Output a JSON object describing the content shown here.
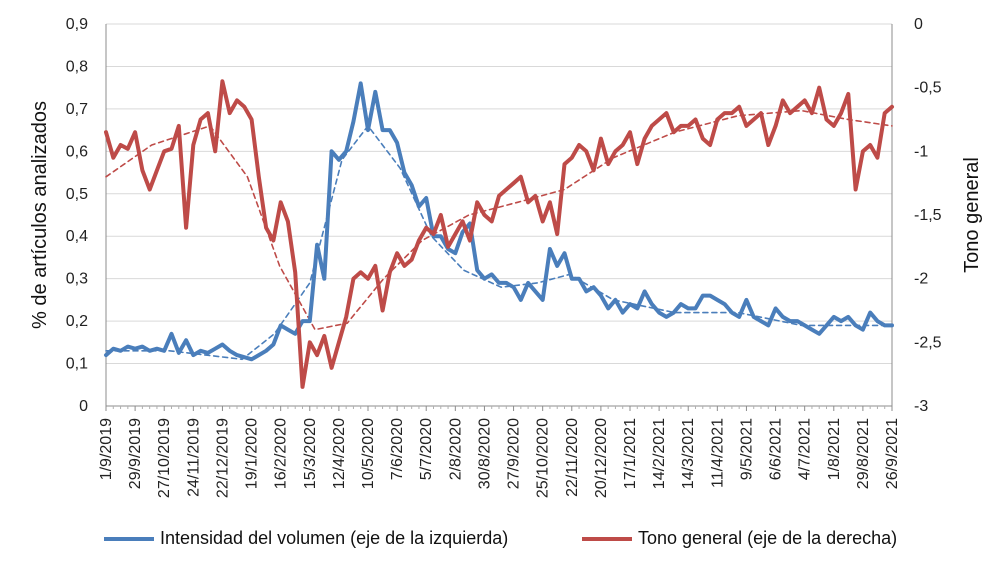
{
  "chart_data": {
    "type": "line",
    "ylabel_left": "% de artículos analizados",
    "ylabel_right": "Tono general",
    "ylim_left": [
      0,
      0.9
    ],
    "ylim_right": [
      -3,
      0
    ],
    "yticks_left": [
      "0",
      "0,1",
      "0,2",
      "0,3",
      "0,4",
      "0,5",
      "0,6",
      "0,7",
      "0,8",
      "0,9"
    ],
    "yticks_right": [
      "-3",
      "-2,5",
      "-2",
      "-1,5",
      "-1",
      "-0,5",
      "0"
    ],
    "x_start": "2019-09-01",
    "x_end": "2021-09-26",
    "xtick_labels": [
      "1/9/2019",
      "29/9/2019",
      "27/10/2019",
      "24/11/2019",
      "22/12/2019",
      "19/1/2020",
      "16/2/2020",
      "15/3/2020",
      "12/4/2020",
      "10/5/2020",
      "7/6/2020",
      "5/7/2020",
      "2/8/2020",
      "30/8/2020",
      "27/9/2020",
      "25/10/2020",
      "22/11/2020",
      "20/12/2020",
      "17/1/2021",
      "14/2/2021",
      "14/3/2021",
      "11/4/2021",
      "9/5/2021",
      "6/6/2021",
      "4/7/2021",
      "1/8/2021",
      "29/8/2021",
      "26/9/2021"
    ],
    "grid": true,
    "legend_position": "bottom",
    "series": [
      {
        "name": "Intensidad del volumen (eje de la izquierda)",
        "axis": "left",
        "color": "#4a7ebb",
        "x": [
          "2019-09-01",
          "2019-09-08",
          "2019-09-15",
          "2019-09-22",
          "2019-09-29",
          "2019-10-06",
          "2019-10-13",
          "2019-10-20",
          "2019-10-27",
          "2019-11-03",
          "2019-11-10",
          "2019-11-17",
          "2019-11-24",
          "2019-12-01",
          "2019-12-08",
          "2019-12-15",
          "2019-12-22",
          "2019-12-29",
          "2020-01-05",
          "2020-01-12",
          "2020-01-19",
          "2020-01-26",
          "2020-02-02",
          "2020-02-09",
          "2020-02-16",
          "2020-02-23",
          "2020-03-01",
          "2020-03-08",
          "2020-03-15",
          "2020-03-22",
          "2020-03-29",
          "2020-04-05",
          "2020-04-12",
          "2020-04-19",
          "2020-04-26",
          "2020-05-03",
          "2020-05-10",
          "2020-05-17",
          "2020-05-24",
          "2020-05-31",
          "2020-06-07",
          "2020-06-14",
          "2020-06-21",
          "2020-06-28",
          "2020-07-05",
          "2020-07-12",
          "2020-07-19",
          "2020-07-26",
          "2020-08-02",
          "2020-08-09",
          "2020-08-16",
          "2020-08-23",
          "2020-08-30",
          "2020-09-06",
          "2020-09-13",
          "2020-09-20",
          "2020-09-27",
          "2020-10-04",
          "2020-10-11",
          "2020-10-18",
          "2020-10-25",
          "2020-11-01",
          "2020-11-08",
          "2020-11-15",
          "2020-11-22",
          "2020-11-29",
          "2020-12-06",
          "2020-12-13",
          "2020-12-20",
          "2020-12-27",
          "2021-01-03",
          "2021-01-10",
          "2021-01-17",
          "2021-01-24",
          "2021-01-31",
          "2021-02-07",
          "2021-02-14",
          "2021-02-21",
          "2021-02-28",
          "2021-03-07",
          "2021-03-14",
          "2021-03-21",
          "2021-03-28",
          "2021-04-04",
          "2021-04-11",
          "2021-04-18",
          "2021-04-25",
          "2021-05-02",
          "2021-05-09",
          "2021-05-16",
          "2021-05-23",
          "2021-05-30",
          "2021-06-06",
          "2021-06-13",
          "2021-06-20",
          "2021-06-27",
          "2021-07-04",
          "2021-07-11",
          "2021-07-18",
          "2021-07-25",
          "2021-08-01",
          "2021-08-08",
          "2021-08-15",
          "2021-08-22",
          "2021-08-29",
          "2021-09-05",
          "2021-09-12",
          "2021-09-19",
          "2021-09-26"
        ],
        "y": [
          0.12,
          0.135,
          0.13,
          0.14,
          0.135,
          0.14,
          0.13,
          0.135,
          0.13,
          0.17,
          0.125,
          0.155,
          0.12,
          0.13,
          0.125,
          0.135,
          0.145,
          0.13,
          0.12,
          0.115,
          0.11,
          0.12,
          0.13,
          0.145,
          0.19,
          0.18,
          0.17,
          0.2,
          0.2,
          0.38,
          0.3,
          0.6,
          0.58,
          0.6,
          0.67,
          0.76,
          0.65,
          0.74,
          0.65,
          0.65,
          0.62,
          0.55,
          0.52,
          0.47,
          0.49,
          0.4,
          0.4,
          0.37,
          0.36,
          0.41,
          0.43,
          0.32,
          0.3,
          0.31,
          0.29,
          0.29,
          0.28,
          0.25,
          0.29,
          0.27,
          0.25,
          0.37,
          0.33,
          0.36,
          0.3,
          0.3,
          0.27,
          0.28,
          0.26,
          0.23,
          0.25,
          0.22,
          0.24,
          0.23,
          0.27,
          0.24,
          0.22,
          0.21,
          0.22,
          0.24,
          0.23,
          0.23,
          0.26,
          0.26,
          0.25,
          0.24,
          0.22,
          0.21,
          0.25,
          0.21,
          0.2,
          0.19,
          0.23,
          0.21,
          0.2,
          0.2,
          0.19,
          0.18,
          0.17,
          0.19,
          0.21,
          0.2,
          0.21,
          0.19,
          0.18,
          0.22,
          0.2,
          0.19,
          0.19
        ]
      },
      {
        "name": "Tono general (eje de la derecha)",
        "axis": "right",
        "color": "#be4b48",
        "x": [
          "2019-09-01",
          "2019-09-08",
          "2019-09-15",
          "2019-09-22",
          "2019-09-29",
          "2019-10-06",
          "2019-10-13",
          "2019-10-20",
          "2019-10-27",
          "2019-11-03",
          "2019-11-10",
          "2019-11-17",
          "2019-11-24",
          "2019-12-01",
          "2019-12-08",
          "2019-12-15",
          "2019-12-22",
          "2019-12-29",
          "2020-01-05",
          "2020-01-12",
          "2020-01-19",
          "2020-01-26",
          "2020-02-02",
          "2020-02-09",
          "2020-02-16",
          "2020-02-23",
          "2020-03-01",
          "2020-03-08",
          "2020-03-15",
          "2020-03-22",
          "2020-03-29",
          "2020-04-05",
          "2020-04-12",
          "2020-04-19",
          "2020-04-26",
          "2020-05-03",
          "2020-05-10",
          "2020-05-17",
          "2020-05-24",
          "2020-05-31",
          "2020-06-07",
          "2020-06-14",
          "2020-06-21",
          "2020-06-28",
          "2020-07-05",
          "2020-07-12",
          "2020-07-19",
          "2020-07-26",
          "2020-08-02",
          "2020-08-09",
          "2020-08-16",
          "2020-08-23",
          "2020-08-30",
          "2020-09-06",
          "2020-09-13",
          "2020-09-20",
          "2020-09-27",
          "2020-10-04",
          "2020-10-11",
          "2020-10-18",
          "2020-10-25",
          "2020-11-01",
          "2020-11-08",
          "2020-11-15",
          "2020-11-22",
          "2020-11-29",
          "2020-12-06",
          "2020-12-13",
          "2020-12-20",
          "2020-12-27",
          "2021-01-03",
          "2021-01-10",
          "2021-01-17",
          "2021-01-24",
          "2021-01-31",
          "2021-02-07",
          "2021-02-14",
          "2021-02-21",
          "2021-02-28",
          "2021-03-07",
          "2021-03-14",
          "2021-03-21",
          "2021-03-28",
          "2021-04-04",
          "2021-04-11",
          "2021-04-18",
          "2021-04-25",
          "2021-05-02",
          "2021-05-09",
          "2021-05-16",
          "2021-05-23",
          "2021-05-30",
          "2021-06-06",
          "2021-06-13",
          "2021-06-20",
          "2021-06-27",
          "2021-07-04",
          "2021-07-11",
          "2021-07-18",
          "2021-07-25",
          "2021-08-01",
          "2021-08-08",
          "2021-08-15",
          "2021-08-22",
          "2021-08-29",
          "2021-09-05",
          "2021-09-12",
          "2021-09-19",
          "2021-09-26"
        ],
        "y": [
          -0.85,
          -1.05,
          -0.95,
          -0.98,
          -0.85,
          -1.15,
          -1.3,
          -1.15,
          -1.0,
          -0.98,
          -0.8,
          -1.6,
          -0.95,
          -0.75,
          -0.7,
          -1.0,
          -0.45,
          -0.7,
          -0.6,
          -0.65,
          -0.75,
          -1.2,
          -1.6,
          -1.7,
          -1.4,
          -1.55,
          -1.95,
          -2.85,
          -2.5,
          -2.6,
          -2.45,
          -2.7,
          -2.5,
          -2.3,
          -2.0,
          -1.95,
          -2.0,
          -1.9,
          -2.25,
          -1.95,
          -1.8,
          -1.9,
          -1.85,
          -1.7,
          -1.6,
          -1.65,
          -1.5,
          -1.75,
          -1.65,
          -1.55,
          -1.7,
          -1.4,
          -1.5,
          -1.55,
          -1.35,
          -1.3,
          -1.25,
          -1.2,
          -1.4,
          -1.35,
          -1.55,
          -1.4,
          -1.65,
          -1.1,
          -1.05,
          -0.95,
          -1.0,
          -1.15,
          -0.9,
          -1.1,
          -1.0,
          -0.95,
          -0.85,
          -1.1,
          -0.9,
          -0.8,
          -0.75,
          -0.7,
          -0.85,
          -0.8,
          -0.8,
          -0.75,
          -0.9,
          -0.95,
          -0.75,
          -0.7,
          -0.7,
          -0.65,
          -0.8,
          -0.75,
          -0.7,
          -0.95,
          -0.8,
          -0.6,
          -0.7,
          -0.65,
          -0.6,
          -0.7,
          -0.5,
          -0.75,
          -0.8,
          -0.7,
          -0.55,
          -1.3,
          -1.0,
          -0.95,
          -1.05,
          -0.7,
          -0.65
        ]
      },
      {
        "name": "",
        "axis": "left",
        "style": "dashed",
        "color": "#4a7ebb",
        "x": [
          "2019-09-01",
          "2019-11-01",
          "2020-01-10",
          "2020-02-10",
          "2020-03-15",
          "2020-04-15",
          "2020-05-10",
          "2020-06-10",
          "2020-07-10",
          "2020-08-10",
          "2020-09-15",
          "2020-10-20",
          "2020-11-20",
          "2021-01-01",
          "2021-03-01",
          "2021-05-01",
          "2021-07-01",
          "2021-09-26"
        ],
        "y": [
          0.13,
          0.13,
          0.11,
          0.17,
          0.29,
          0.58,
          0.66,
          0.56,
          0.4,
          0.32,
          0.28,
          0.29,
          0.31,
          0.25,
          0.22,
          0.22,
          0.19,
          0.19
        ]
      },
      {
        "name": "",
        "axis": "right",
        "style": "dashed",
        "color": "#be4b48",
        "x": [
          "2019-09-01",
          "2019-10-15",
          "2019-12-10",
          "2020-01-15",
          "2020-02-15",
          "2020-03-20",
          "2020-04-20",
          "2020-05-25",
          "2020-07-01",
          "2020-08-15",
          "2020-10-01",
          "2020-11-15",
          "2021-01-01",
          "2021-03-01",
          "2021-05-01",
          "2021-07-01",
          "2021-08-15",
          "2021-09-26"
        ],
        "y": [
          -1.2,
          -0.95,
          -0.8,
          -1.2,
          -1.9,
          -2.4,
          -2.35,
          -2.0,
          -1.7,
          -1.5,
          -1.4,
          -1.3,
          -1.05,
          -0.85,
          -0.72,
          -0.68,
          -0.75,
          -0.8
        ]
      }
    ]
  }
}
